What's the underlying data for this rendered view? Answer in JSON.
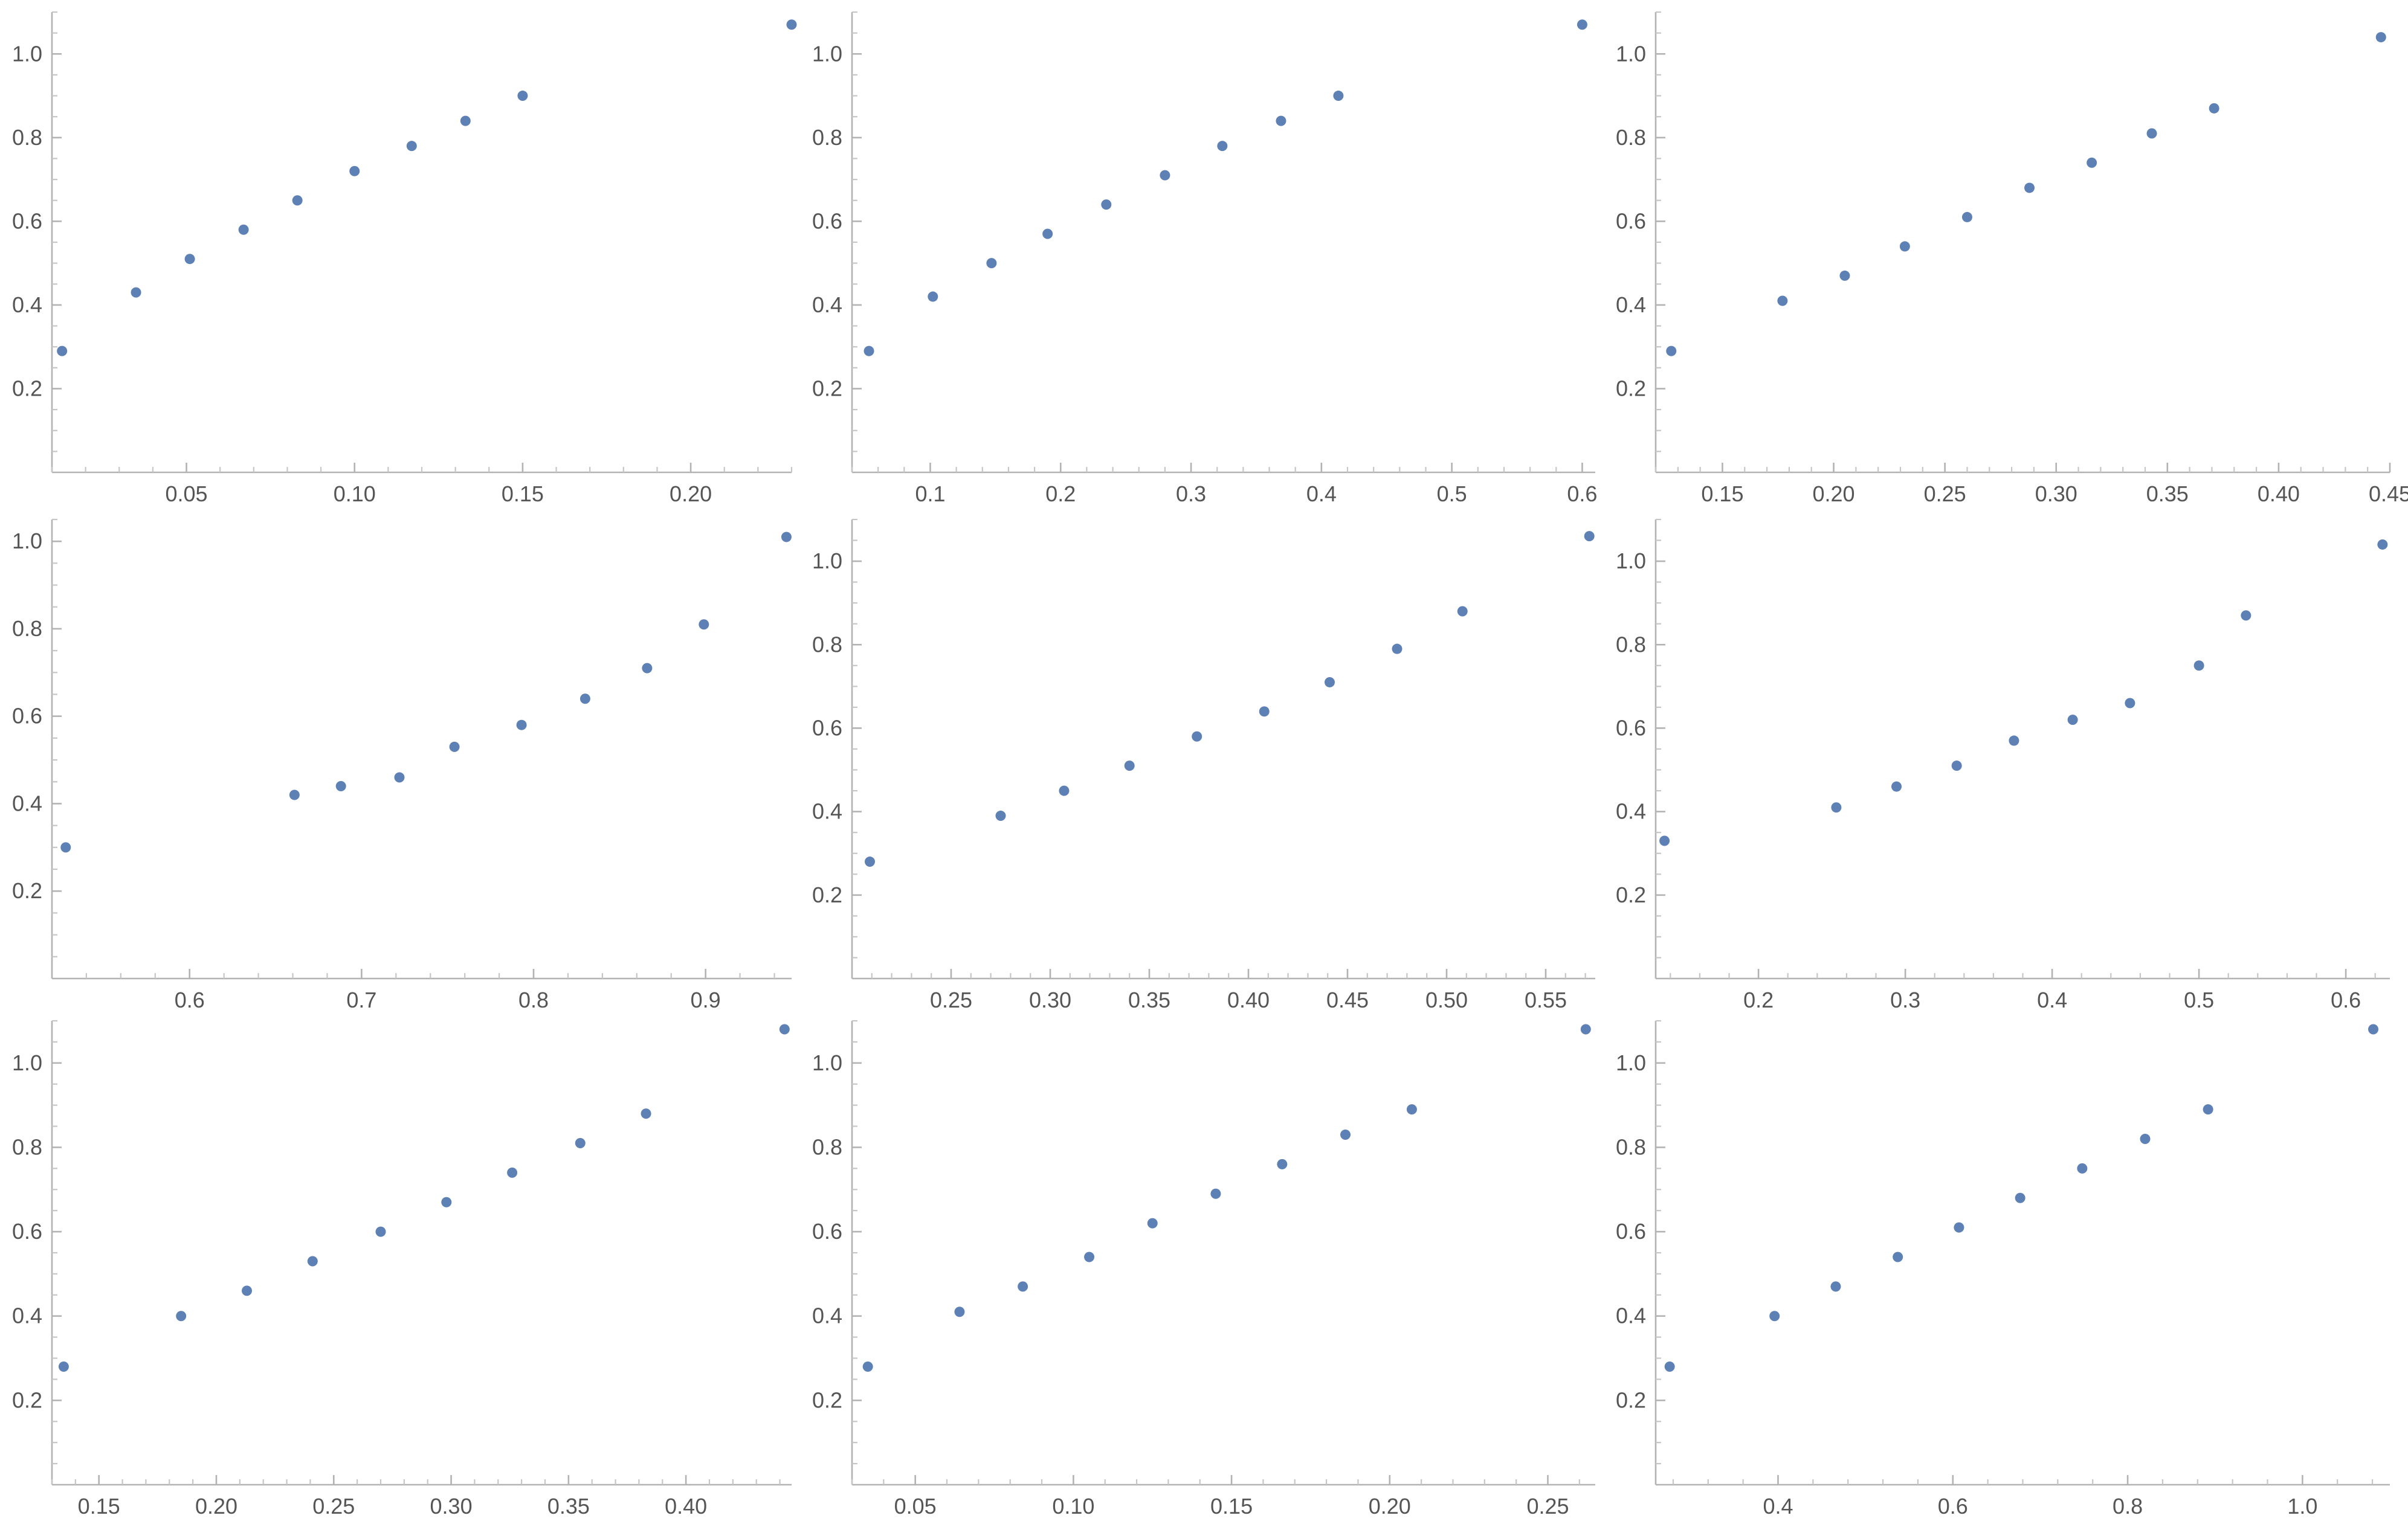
{
  "chart_data": [
    {
      "type": "scatter",
      "title": "",
      "xlabel": "",
      "ylabel": "",
      "xlim": [
        0.01,
        0.23
      ],
      "ylim": [
        0,
        1.1
      ],
      "xticks": [
        0.05,
        0.1,
        0.15,
        0.2
      ],
      "xtick_labels": [
        "0.05",
        "0.10",
        "0.15",
        "0.20"
      ],
      "yticks": [
        0.2,
        0.4,
        0.6,
        0.8,
        1.0
      ],
      "ytick_labels": [
        "0.2",
        "0.4",
        "0.6",
        "0.8",
        "1.0"
      ],
      "x": [
        0.013,
        0.035,
        0.051,
        0.067,
        0.083,
        0.1,
        0.117,
        0.133,
        0.15,
        0.23
      ],
      "y": [
        0.29,
        0.43,
        0.51,
        0.58,
        0.65,
        0.72,
        0.78,
        0.84,
        0.9,
        1.07
      ]
    },
    {
      "type": "scatter",
      "title": "",
      "xlabel": "",
      "ylabel": "",
      "xlim": [
        0.04,
        0.61
      ],
      "ylim": [
        0,
        1.1
      ],
      "xticks": [
        0.1,
        0.2,
        0.3,
        0.4,
        0.5,
        0.6
      ],
      "xtick_labels": [
        "0.1",
        "0.2",
        "0.3",
        "0.4",
        "0.5",
        "0.6"
      ],
      "yticks": [
        0.2,
        0.4,
        0.6,
        0.8,
        1.0
      ],
      "ytick_labels": [
        "0.2",
        "0.4",
        "0.6",
        "0.8",
        "1.0"
      ],
      "x": [
        0.053,
        0.102,
        0.147,
        0.19,
        0.235,
        0.28,
        0.324,
        0.369,
        0.413,
        0.6
      ],
      "y": [
        0.29,
        0.42,
        0.5,
        0.57,
        0.64,
        0.71,
        0.78,
        0.84,
        0.9,
        1.07
      ]
    },
    {
      "type": "scatter",
      "title": "",
      "xlabel": "",
      "ylabel": "",
      "xlim": [
        0.12,
        0.45
      ],
      "ylim": [
        0,
        1.1
      ],
      "xticks": [
        0.15,
        0.2,
        0.25,
        0.3,
        0.35,
        0.4,
        0.45
      ],
      "xtick_labels": [
        "0.15",
        "0.20",
        "0.25",
        "0.30",
        "0.35",
        "0.40",
        "0.45"
      ],
      "yticks": [
        0.2,
        0.4,
        0.6,
        0.8,
        1.0
      ],
      "ytick_labels": [
        "0.2",
        "0.4",
        "0.6",
        "0.8",
        "1.0"
      ],
      "x": [
        0.127,
        0.177,
        0.205,
        0.232,
        0.26,
        0.288,
        0.316,
        0.343,
        0.371,
        0.446
      ],
      "y": [
        0.29,
        0.41,
        0.47,
        0.54,
        0.61,
        0.68,
        0.74,
        0.81,
        0.87,
        1.04
      ]
    },
    {
      "type": "scatter",
      "title": "",
      "xlabel": "",
      "ylabel": "",
      "xlim": [
        0.52,
        0.95
      ],
      "ylim": [
        0,
        1.05
      ],
      "xticks": [
        0.6,
        0.7,
        0.8,
        0.9
      ],
      "xtick_labels": [
        "0.6",
        "0.7",
        "0.8",
        "0.9"
      ],
      "yticks": [
        0.2,
        0.4,
        0.6,
        0.8,
        1.0
      ],
      "ytick_labels": [
        "0.2",
        "0.4",
        "0.6",
        "0.8",
        "1.0"
      ],
      "x": [
        0.528,
        0.661,
        0.688,
        0.722,
        0.754,
        0.793,
        0.83,
        0.866,
        0.899,
        0.947
      ],
      "y": [
        0.3,
        0.42,
        0.44,
        0.46,
        0.53,
        0.58,
        0.64,
        0.71,
        0.81,
        1.01
      ]
    },
    {
      "type": "scatter",
      "title": "",
      "xlabel": "",
      "ylabel": "",
      "xlim": [
        0.2,
        0.575
      ],
      "ylim": [
        0,
        1.1
      ],
      "xticks": [
        0.25,
        0.3,
        0.35,
        0.4,
        0.45,
        0.5,
        0.55
      ],
      "xtick_labels": [
        "0.25",
        "0.30",
        "0.35",
        "0.40",
        "0.45",
        "0.50",
        "0.55"
      ],
      "yticks": [
        0.2,
        0.4,
        0.6,
        0.8,
        1.0
      ],
      "ytick_labels": [
        "0.2",
        "0.4",
        "0.6",
        "0.8",
        "1.0"
      ],
      "x": [
        0.209,
        0.275,
        0.307,
        0.34,
        0.374,
        0.408,
        0.441,
        0.475,
        0.508,
        0.572
      ],
      "y": [
        0.28,
        0.39,
        0.45,
        0.51,
        0.58,
        0.64,
        0.71,
        0.79,
        0.88,
        1.06
      ]
    },
    {
      "type": "scatter",
      "title": "",
      "xlabel": "",
      "ylabel": "",
      "xlim": [
        0.13,
        0.63
      ],
      "ylim": [
        0,
        1.1
      ],
      "xticks": [
        0.2,
        0.3,
        0.4,
        0.5,
        0.6
      ],
      "xtick_labels": [
        "0.2",
        "0.3",
        "0.4",
        "0.5",
        "0.6"
      ],
      "yticks": [
        0.2,
        0.4,
        0.6,
        0.8,
        1.0
      ],
      "ytick_labels": [
        "0.2",
        "0.4",
        "0.6",
        "0.8",
        "1.0"
      ],
      "x": [
        0.136,
        0.253,
        0.294,
        0.335,
        0.374,
        0.414,
        0.453,
        0.5,
        0.532,
        0.625
      ],
      "y": [
        0.33,
        0.41,
        0.46,
        0.51,
        0.57,
        0.62,
        0.66,
        0.75,
        0.87,
        1.04
      ]
    },
    {
      "type": "scatter",
      "title": "",
      "xlabel": "",
      "ylabel": "",
      "xlim": [
        0.13,
        0.445
      ],
      "ylim": [
        0,
        1.1
      ],
      "xticks": [
        0.15,
        0.2,
        0.25,
        0.3,
        0.35,
        0.4
      ],
      "xtick_labels": [
        "0.15",
        "0.20",
        "0.25",
        "0.30",
        "0.35",
        "0.40"
      ],
      "yticks": [
        0.2,
        0.4,
        0.6,
        0.8,
        1.0
      ],
      "ytick_labels": [
        "0.2",
        "0.4",
        "0.6",
        "0.8",
        "1.0"
      ],
      "x": [
        0.135,
        0.185,
        0.213,
        0.241,
        0.27,
        0.298,
        0.326,
        0.355,
        0.383,
        0.442
      ],
      "y": [
        0.28,
        0.4,
        0.46,
        0.53,
        0.6,
        0.67,
        0.74,
        0.81,
        0.88,
        1.08
      ]
    },
    {
      "type": "scatter",
      "title": "",
      "xlabel": "",
      "ylabel": "",
      "xlim": [
        0.03,
        0.265
      ],
      "ylim": [
        0,
        1.1
      ],
      "xticks": [
        0.05,
        0.1,
        0.15,
        0.2,
        0.25
      ],
      "xtick_labels": [
        "0.05",
        "0.10",
        "0.15",
        "0.20",
        "0.25"
      ],
      "yticks": [
        0.2,
        0.4,
        0.6,
        0.8,
        1.0
      ],
      "ytick_labels": [
        "0.2",
        "0.4",
        "0.6",
        "0.8",
        "1.0"
      ],
      "x": [
        0.035,
        0.064,
        0.084,
        0.105,
        0.125,
        0.145,
        0.166,
        0.186,
        0.207,
        0.262
      ],
      "y": [
        0.28,
        0.41,
        0.47,
        0.54,
        0.62,
        0.69,
        0.76,
        0.83,
        0.89,
        1.08
      ]
    },
    {
      "type": "scatter",
      "title": "",
      "xlabel": "",
      "ylabel": "",
      "xlim": [
        0.26,
        1.1
      ],
      "ylim": [
        0,
        1.1
      ],
      "xticks": [
        0.4,
        0.6,
        0.8,
        1.0
      ],
      "xtick_labels": [
        "0.4",
        "0.6",
        "0.8",
        "1.0"
      ],
      "yticks": [
        0.2,
        0.4,
        0.6,
        0.8,
        1.0
      ],
      "ytick_labels": [
        "0.2",
        "0.4",
        "0.6",
        "0.8",
        "1.0"
      ],
      "x": [
        0.276,
        0.396,
        0.466,
        0.537,
        0.607,
        0.677,
        0.748,
        0.82,
        0.892,
        1.081
      ],
      "y": [
        0.28,
        0.4,
        0.47,
        0.54,
        0.61,
        0.68,
        0.75,
        0.82,
        0.89,
        1.08
      ]
    }
  ]
}
